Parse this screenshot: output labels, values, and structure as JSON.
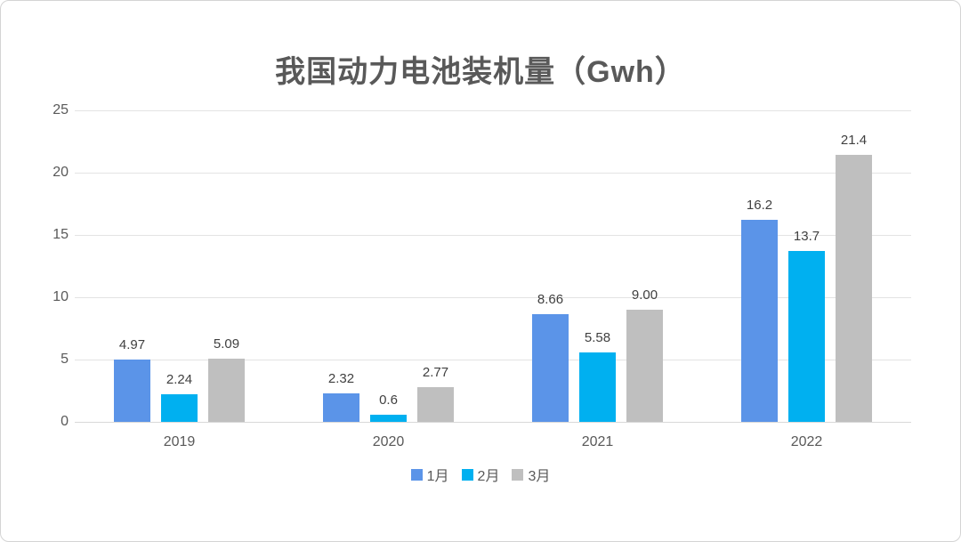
{
  "chart_data": {
    "type": "bar",
    "title": "我国动力电池装机量（Gwh）",
    "categories": [
      "2019",
      "2020",
      "2021",
      "2022"
    ],
    "series": [
      {
        "name": "1月",
        "color": "#5B94E8",
        "values": [
          4.97,
          2.32,
          8.66,
          16.2
        ],
        "labels": [
          "4.97",
          "2.32",
          "8.66",
          "16.2"
        ]
      },
      {
        "name": "2月",
        "color": "#00B0F0",
        "values": [
          2.24,
          0.6,
          5.58,
          13.7
        ],
        "labels": [
          "2.24",
          "0.6",
          "5.58",
          "13.7"
        ]
      },
      {
        "name": "3月",
        "color": "#BFBFBF",
        "values": [
          5.09,
          2.77,
          9.0,
          21.4
        ],
        "labels": [
          "5.09",
          "2.77",
          "9.00",
          "21.4"
        ]
      }
    ],
    "y_ticks": [
      0,
      5,
      10,
      15,
      20,
      25
    ],
    "ylim": [
      0,
      25
    ],
    "xlabel": "",
    "ylabel": "",
    "grid": true,
    "legend_position": "bottom"
  },
  "style": {
    "title_color": "#595959",
    "axis_label_color": "#595959",
    "data_label_color": "#404040",
    "gridline_color": "#e3e3e3",
    "background": "#ffffff",
    "border_color": "#d4d4d4"
  }
}
